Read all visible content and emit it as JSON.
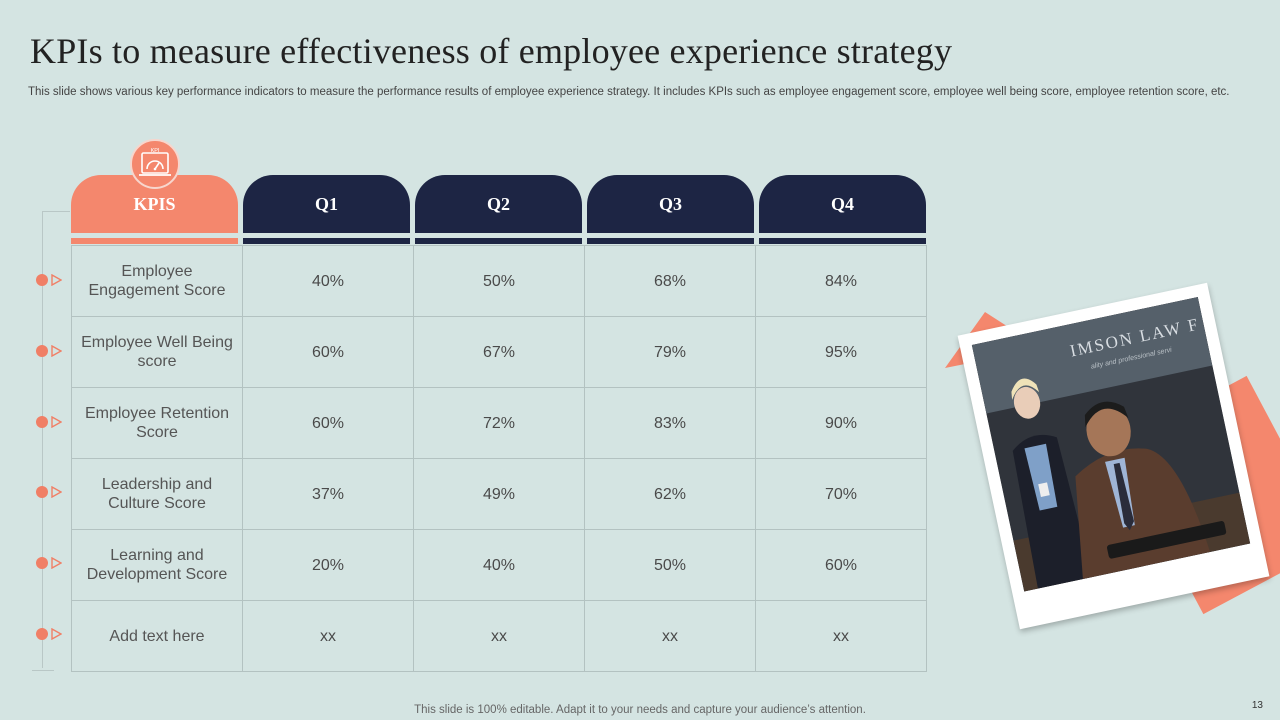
{
  "slide": {
    "title": "KPIs to measure effectiveness of employee experience strategy",
    "subtitle": "This slide shows various key performance indicators to measure the performance results of employee experience strategy. It includes KPIs such as employee engagement score, employee well being score, employee retention score, etc.",
    "footer": "This slide is 100% editable. Adapt it to your needs and capture your audience’s attention.",
    "page_number": "13"
  },
  "badge": {
    "icon": "kpi-gauge-icon",
    "label": "KPI"
  },
  "table": {
    "headers": [
      "KPIS",
      "Q1",
      "Q2",
      "Q3",
      "Q4"
    ],
    "rows": [
      {
        "kpi": "Employee Engagement Score",
        "values": [
          "40%",
          "50%",
          "68%",
          "84%"
        ]
      },
      {
        "kpi": "Employee Well Being score",
        "values": [
          "60%",
          "67%",
          "79%",
          "95%"
        ]
      },
      {
        "kpi": "Employee Retention Score",
        "values": [
          "60%",
          "72%",
          "83%",
          "90%"
        ]
      },
      {
        "kpi": "Leadership and Culture Score",
        "values": [
          "37%",
          "49%",
          "62%",
          "70%"
        ]
      },
      {
        "kpi": "Learning and Development Score",
        "values": [
          "20%",
          "40%",
          "50%",
          "60%"
        ]
      },
      {
        "kpi": "Add text here",
        "values": [
          "xx",
          "xx",
          "xx",
          "xx"
        ]
      }
    ]
  },
  "photo": {
    "sign_text": "IMSON LAW F",
    "sign_tagline": "ality and professional servi"
  },
  "colors": {
    "accent": "#f4876d",
    "navy": "#1d2544",
    "background": "#d4e4e2"
  }
}
